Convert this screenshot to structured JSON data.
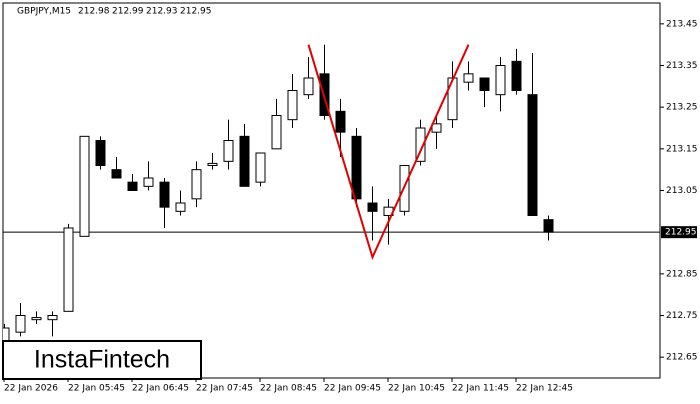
{
  "chart_data": {
    "type": "candlestick",
    "title": "GBPJPY,M15",
    "ohlc_header": [
      212.98,
      212.99,
      212.93,
      212.95
    ],
    "categories": [
      "22 Jan 2026",
      null,
      null,
      null,
      "22 Jan 05:45",
      null,
      null,
      null,
      "22 Jan 06:45",
      null,
      null,
      null,
      "22 Jan 07:45",
      null,
      null,
      null,
      "22 Jan 08:45",
      null,
      null,
      null,
      "22 Jan 09:45",
      null,
      null,
      null,
      "22 Jan 10:45",
      null,
      null,
      null,
      "22 Jan 11:45",
      null,
      null,
      null,
      "22 Jan 12:45",
      null,
      null
    ],
    "open": [
      212.69,
      212.71,
      212.74,
      212.74,
      212.76,
      212.94,
      213.17,
      213.1,
      213.07,
      213.06,
      213.07,
      213.0,
      213.03,
      213.11,
      213.12,
      213.18,
      213.07,
      213.15,
      213.22,
      213.28,
      213.33,
      213.24,
      213.18,
      213.02,
      212.99,
      213.0,
      213.12,
      213.19,
      213.22,
      213.31,
      213.32,
      213.28,
      213.36,
      213.28,
      212.98
    ],
    "high": [
      212.73,
      212.78,
      212.76,
      212.76,
      212.97,
      213.18,
      213.18,
      213.13,
      213.09,
      213.12,
      213.08,
      213.05,
      213.12,
      213.14,
      213.22,
      213.21,
      213.14,
      213.27,
      213.33,
      213.37,
      213.4,
      213.27,
      213.2,
      213.06,
      213.03,
      213.11,
      213.22,
      213.23,
      213.36,
      213.36,
      213.32,
      213.37,
      213.39,
      213.38,
      212.99
    ],
    "low": [
      212.68,
      212.7,
      212.73,
      212.7,
      212.76,
      212.94,
      213.1,
      213.08,
      213.05,
      213.05,
      212.96,
      212.99,
      213.01,
      213.1,
      213.1,
      213.06,
      213.06,
      213.15,
      213.2,
      213.27,
      213.22,
      213.13,
      213.01,
      212.93,
      212.92,
      212.99,
      213.11,
      213.15,
      213.2,
      213.29,
      213.25,
      213.24,
      213.28,
      212.99,
      212.93
    ],
    "close": [
      212.72,
      212.75,
      212.745,
      212.75,
      212.96,
      213.18,
      213.11,
      213.08,
      213.05,
      213.08,
      213.01,
      213.02,
      213.1,
      213.115,
      213.17,
      213.06,
      213.14,
      213.23,
      213.29,
      213.32,
      213.23,
      213.19,
      213.03,
      213.0,
      213.01,
      213.11,
      213.2,
      213.21,
      213.32,
      213.33,
      213.29,
      213.35,
      213.29,
      212.99,
      212.95
    ],
    "pattern": {
      "color": "#e00000",
      "index": [
        19,
        23,
        29
      ],
      "price": [
        213.4,
        212.89,
        213.4
      ]
    },
    "current_price": 212.95,
    "ylim": [
      212.6,
      213.5
    ],
    "yticks": [
      212.65,
      212.75,
      212.85,
      213.05,
      213.15,
      213.25,
      213.35,
      213.45
    ],
    "watermark": "InstaFintech"
  }
}
